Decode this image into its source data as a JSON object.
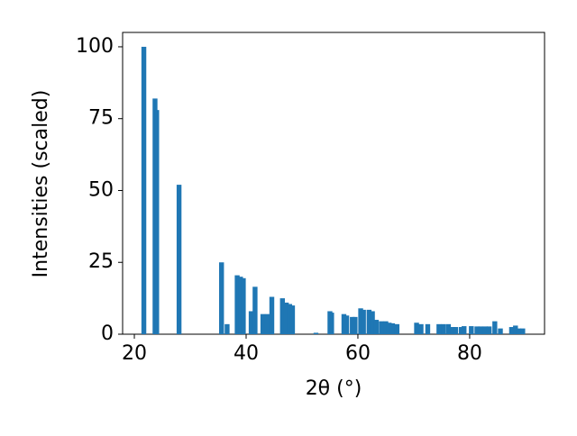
{
  "chart_data": {
    "type": "bar",
    "x_label": "2θ (°)",
    "y_label": "Intensities (scaled)",
    "x": [
      21.7,
      23.7,
      24.0,
      28.0,
      35.6,
      36.6,
      38.4,
      39.0,
      39.5,
      40.9,
      41.6,
      43.0,
      43.8,
      44.6,
      46.5,
      47.2,
      47.8,
      48.3,
      52.5,
      55.0,
      55.3,
      57.5,
      58.0,
      59.0,
      59.5,
      60.5,
      61.0,
      62.0,
      62.6,
      63.3,
      64.2,
      65.0,
      65.6,
      66.2,
      67.0,
      70.5,
      71.3,
      72.5,
      74.5,
      75.3,
      76.2,
      77.0,
      77.5,
      78.5,
      79.0,
      80.3,
      81.3,
      82.0,
      82.8,
      83.5,
      84.5,
      85.5,
      87.5,
      88.2,
      88.8,
      89.5
    ],
    "values": [
      100,
      82,
      78,
      52,
      25,
      3.5,
      20.5,
      20,
      19.5,
      8,
      16.5,
      7,
      7,
      13,
      12.5,
      11,
      10.5,
      10,
      0.5,
      8,
      7.5,
      7,
      6.5,
      6,
      6,
      9,
      8.5,
      8.5,
      8,
      5,
      4.5,
      4.5,
      4,
      3.8,
      3.5,
      4,
      3.5,
      3.5,
      3.5,
      3.5,
      3.5,
      2.5,
      2.5,
      2.5,
      2.8,
      2.8,
      2.7,
      2.7,
      2.7,
      2.7,
      4.5,
      2,
      2.5,
      3,
      2,
      2
    ],
    "color": "#1f77b4",
    "xlim": [
      17.9,
      93.4
    ],
    "xticks": [
      20,
      40,
      60,
      80
    ],
    "ylim": [
      0,
      105
    ],
    "yticks": [
      0,
      25,
      50,
      75,
      100
    ]
  }
}
